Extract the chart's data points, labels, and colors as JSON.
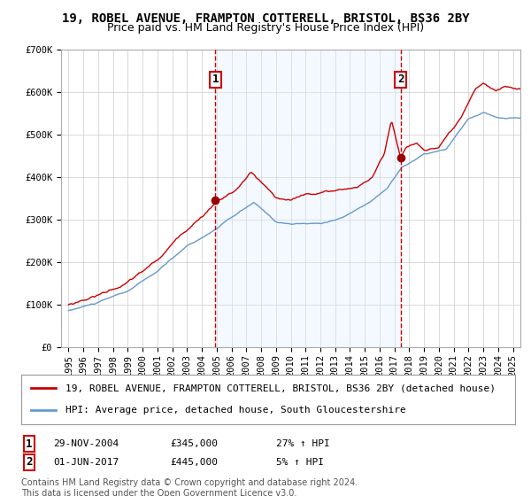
{
  "title1": "19, ROBEL AVENUE, FRAMPTON COTTERELL, BRISTOL, BS36 2BY",
  "title2": "Price paid vs. HM Land Registry's House Price Index (HPI)",
  "legend_line1": "19, ROBEL AVENUE, FRAMPTON COTTERELL, BRISTOL, BS36 2BY (detached house)",
  "legend_line2": "HPI: Average price, detached house, South Gloucestershire",
  "annotation1_label": "1",
  "annotation1_date": "29-NOV-2004",
  "annotation1_price": "£345,000",
  "annotation1_hpi": "27% ↑ HPI",
  "annotation2_label": "2",
  "annotation2_date": "01-JUN-2017",
  "annotation2_price": "£445,000",
  "annotation2_hpi": "5% ↑ HPI",
  "footer": "Contains HM Land Registry data © Crown copyright and database right 2024.\nThis data is licensed under the Open Government Licence v3.0.",
  "sale1_x": 2004.91,
  "sale1_y": 345000,
  "sale2_x": 2017.42,
  "sale2_y": 445000,
  "vline1_x": 2004.91,
  "vline2_x": 2017.42,
  "shade_start": 2004.91,
  "shade_end": 2017.42,
  "ylim": [
    0,
    700000
  ],
  "xlim_start": 1994.5,
  "xlim_end": 2025.5,
  "yticks": [
    0,
    100000,
    200000,
    300000,
    400000,
    500000,
    600000,
    700000
  ],
  "ytick_labels": [
    "£0",
    "£100K",
    "£200K",
    "£300K",
    "£400K",
    "£500K",
    "£600K",
    "£700K"
  ],
  "xtick_years": [
    1995,
    1996,
    1997,
    1998,
    1999,
    2000,
    2001,
    2002,
    2003,
    2004,
    2005,
    2006,
    2007,
    2008,
    2009,
    2010,
    2011,
    2012,
    2013,
    2014,
    2015,
    2016,
    2017,
    2018,
    2019,
    2020,
    2021,
    2022,
    2023,
    2024,
    2025
  ],
  "red_line_color": "#cc0000",
  "blue_line_color": "#6699cc",
  "shade_color": "#ddeeff",
  "vline_color": "#cc0000",
  "marker_color": "#990000",
  "box_color": "#cc0000",
  "grid_color": "#cccccc",
  "title_fontsize": 10,
  "subtitle_fontsize": 9,
  "tick_fontsize": 7.5,
  "legend_fontsize": 8,
  "annotation_fontsize": 8,
  "footer_fontsize": 7
}
